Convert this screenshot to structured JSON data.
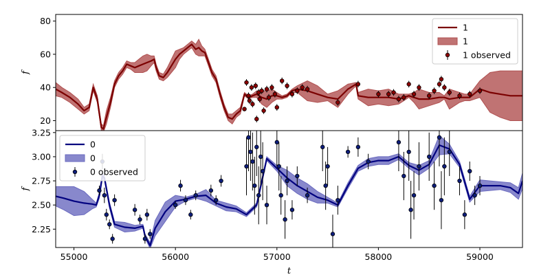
{
  "chart_data": [
    {
      "type": "line",
      "panel": "top",
      "xlabel": "",
      "ylabel": "f",
      "xlim": [
        54820,
        59420
      ],
      "ylim": [
        14,
        84
      ],
      "xticks": [],
      "yticks": [
        20,
        40,
        60,
        80
      ],
      "ytick_labels": [
        "20",
        "40",
        "60",
        "80"
      ],
      "colors": {
        "line": "#7b0000",
        "band": "#b05050",
        "point": "#8b0000"
      },
      "legend": {
        "position": "top-right",
        "entries": [
          "1",
          "1",
          "1 observed"
        ]
      },
      "series": [
        {
          "name": "1",
          "kind": "model",
          "x": [
            54820,
            54880,
            54960,
            55040,
            55100,
            55150,
            55190,
            55230,
            55270,
            55290,
            55320,
            55360,
            55400,
            55440,
            55480,
            55520,
            55560,
            55600,
            55640,
            55680,
            55720,
            55760,
            55790,
            55810,
            55840,
            55880,
            55920,
            55960,
            56000,
            56040,
            56080,
            56120,
            56160,
            56200,
            56230,
            56260,
            56290,
            56320,
            56360,
            56400,
            56440,
            56480,
            56520,
            56560,
            56600,
            56640,
            56680,
            56700,
            56720,
            56760,
            56800,
            56850,
            56900,
            56950,
            57000,
            57050,
            57100,
            57150,
            57200,
            57300,
            57400,
            57500,
            57600,
            57700,
            57780,
            57800,
            57900,
            58000,
            58100,
            58200,
            58300,
            58350,
            58400,
            58500,
            58600,
            58650,
            58700,
            58800,
            58850,
            58900,
            59000,
            59100,
            59200,
            59300,
            59420
          ],
          "y": [
            39,
            37,
            34,
            30,
            26,
            28,
            40,
            33,
            16,
            15,
            22,
            31,
            42,
            47,
            50,
            54,
            53,
            52,
            53,
            54,
            55,
            56,
            57,
            52,
            47,
            46,
            49,
            53,
            57,
            60,
            62,
            64,
            66,
            63,
            64,
            62,
            61,
            56,
            49,
            45,
            36,
            28,
            22,
            21,
            24,
            26,
            36,
            35,
            34,
            35,
            36,
            34,
            33,
            35,
            35,
            34,
            35,
            38,
            39,
            38,
            36,
            34,
            33,
            39,
            42,
            35,
            34,
            34,
            34,
            33,
            35,
            34,
            33,
            33,
            34,
            34,
            33,
            34,
            34,
            34,
            39,
            37,
            36,
            35,
            35
          ],
          "err": [
            4,
            3,
            3,
            3,
            2,
            2,
            2,
            2,
            2,
            2,
            4,
            3,
            2,
            2,
            2,
            2,
            2,
            3,
            4,
            5,
            5,
            3,
            2,
            2,
            2,
            2,
            3,
            4,
            5,
            3,
            2,
            2,
            2,
            3,
            5,
            3,
            2,
            2,
            2,
            2,
            2,
            2,
            2,
            3,
            2,
            2,
            1,
            1,
            1,
            1,
            2,
            4,
            5,
            4,
            2,
            1,
            1,
            1,
            2,
            6,
            5,
            2,
            5,
            3,
            1,
            2,
            5,
            4,
            5,
            3,
            1,
            3,
            6,
            4,
            3,
            1,
            6,
            3,
            2,
            2,
            5,
            12,
            14,
            15,
            15
          ]
        },
        {
          "name": "1 observed",
          "kind": "observed",
          "x": [
            56680,
            56700,
            56720,
            56730,
            56750,
            56760,
            56790,
            56800,
            56820,
            56830,
            56850,
            56870,
            56900,
            56920,
            56950,
            56980,
            57000,
            57050,
            57100,
            57150,
            57200,
            57250,
            57300,
            57600,
            57800,
            58000,
            58100,
            58150,
            58200,
            58250,
            58300,
            58350,
            58400,
            58500,
            58550,
            58600,
            58620,
            58650,
            58700,
            58800,
            58900,
            59000
          ],
          "y": [
            27,
            43,
            35,
            32,
            40,
            30,
            41,
            21,
            37,
            33,
            38,
            26,
            39,
            34,
            40,
            36,
            28,
            44,
            41,
            36,
            38,
            40,
            39,
            31,
            42,
            36,
            36,
            37,
            33,
            34,
            42,
            36,
            40,
            35,
            38,
            42,
            45,
            40,
            37,
            35,
            36,
            38
          ],
          "err": [
            1,
            2,
            2,
            2,
            2,
            2,
            2,
            2,
            2,
            2,
            2,
            2,
            2,
            2,
            2,
            2,
            2,
            2,
            2,
            2,
            2,
            2,
            2,
            2,
            2,
            2,
            2,
            2,
            2,
            2,
            2,
            2,
            2,
            2,
            2,
            2,
            2,
            2,
            2,
            2,
            2,
            2
          ]
        }
      ]
    },
    {
      "type": "line",
      "panel": "bottom",
      "xlabel": "t",
      "ylabel": "f",
      "xlim": [
        54820,
        59420
      ],
      "ylim": [
        2.06,
        3.27
      ],
      "xticks": [
        55000,
        56000,
        57000,
        58000,
        59000
      ],
      "xtick_labels": [
        "55000",
        "56000",
        "57000",
        "58000",
        "59000"
      ],
      "yticks": [
        2.25,
        2.5,
        2.75,
        3.0,
        3.25
      ],
      "ytick_labels": [
        "2.25",
        "2.50",
        "2.75",
        "3.00",
        "3.25"
      ],
      "colors": {
        "line": "#00007f",
        "band": "#6a6abf",
        "point": "#0d1d7a"
      },
      "legend": {
        "position": "top-left",
        "entries": [
          "0",
          "0",
          "0 observed"
        ]
      },
      "series": [
        {
          "name": "0",
          "kind": "model",
          "x": [
            54820,
            54900,
            55000,
            55100,
            55180,
            55220,
            55250,
            55280,
            55300,
            55350,
            55400,
            55500,
            55600,
            55680,
            55700,
            55750,
            55800,
            55900,
            56000,
            56100,
            56200,
            56300,
            56400,
            56500,
            56600,
            56700,
            56800,
            56900,
            57000,
            57100,
            57200,
            57300,
            57400,
            57500,
            57600,
            57700,
            57800,
            57900,
            58000,
            58100,
            58200,
            58300,
            58400,
            58500,
            58600,
            58700,
            58800,
            58900,
            59000,
            59100,
            59200,
            59300,
            59380,
            59420
          ],
          "y": [
            2.59,
            2.57,
            2.54,
            2.52,
            2.51,
            2.5,
            2.6,
            2.8,
            2.78,
            2.5,
            2.3,
            2.27,
            2.26,
            2.28,
            2.18,
            2.08,
            2.26,
            2.43,
            2.54,
            2.56,
            2.59,
            2.6,
            2.52,
            2.48,
            2.46,
            2.4,
            2.5,
            2.98,
            2.88,
            2.78,
            2.7,
            2.64,
            2.58,
            2.55,
            2.5,
            2.7,
            2.88,
            2.94,
            2.96,
            2.96,
            3.0,
            2.91,
            2.86,
            2.92,
            3.12,
            3.08,
            2.92,
            2.56,
            2.7,
            2.7,
            2.7,
            2.68,
            2.62,
            2.75
          ],
          "err": [
            0.1,
            0.12,
            0.15,
            0.12,
            0.05,
            0.02,
            0.03,
            0.03,
            0.02,
            0.03,
            0.03,
            0.05,
            0.03,
            0.02,
            0.02,
            0.03,
            0.08,
            0.1,
            0.06,
            0.02,
            0.02,
            0.06,
            0.03,
            0.04,
            0.03,
            0.02,
            0.02,
            0.02,
            0.03,
            0.08,
            0.08,
            0.08,
            0.06,
            0.03,
            0.02,
            0.03,
            0.03,
            0.04,
            0.04,
            0.04,
            0.03,
            0.03,
            0.05,
            0.04,
            0.1,
            0.05,
            0.03,
            0.03,
            0.06,
            0.05,
            0.04,
            0.05,
            0.06,
            0.08
          ]
        },
        {
          "name": "0 observed",
          "kind": "observed",
          "x": [
            55250,
            55280,
            55300,
            55320,
            55350,
            55380,
            55400,
            55600,
            55650,
            55700,
            55720,
            55750,
            56000,
            56050,
            56100,
            56150,
            56200,
            56350,
            56400,
            56450,
            56700,
            56720,
            56740,
            56760,
            56780,
            56800,
            56820,
            56840,
            56860,
            56900,
            57000,
            57020,
            57040,
            57080,
            57100,
            57150,
            57200,
            57300,
            57450,
            57480,
            57500,
            57550,
            57600,
            57700,
            57800,
            57900,
            58200,
            58250,
            58300,
            58320,
            58350,
            58400,
            58500,
            58550,
            58600,
            58620,
            58650,
            58700,
            58800,
            58850,
            58900,
            58950,
            59000
          ],
          "y": [
            2.65,
            2.95,
            2.6,
            2.4,
            2.3,
            2.15,
            2.55,
            2.45,
            2.35,
            2.15,
            2.4,
            2.2,
            2.5,
            2.7,
            2.55,
            2.4,
            2.6,
            2.65,
            2.55,
            2.75,
            2.9,
            3.2,
            3.05,
            2.95,
            2.7,
            3.1,
            2.6,
            3.0,
            2.85,
            2.5,
            3.15,
            2.9,
            2.6,
            2.35,
            2.75,
            2.45,
            2.8,
            2.6,
            3.1,
            2.7,
            2.9,
            2.2,
            2.55,
            3.05,
            3.1,
            2.95,
            3.15,
            2.8,
            3.05,
            2.45,
            2.6,
            2.9,
            3.0,
            2.7,
            3.2,
            2.55,
            2.9,
            3.05,
            2.75,
            2.4,
            2.85,
            2.6,
            2.7
          ],
          "err": [
            0.05,
            0.08,
            0.08,
            0.06,
            0.05,
            0.05,
            0.06,
            0.06,
            0.05,
            0.05,
            0.06,
            0.05,
            0.04,
            0.06,
            0.05,
            0.05,
            0.05,
            0.06,
            0.05,
            0.06,
            0.3,
            0.35,
            0.3,
            0.3,
            0.3,
            0.3,
            0.3,
            0.3,
            0.3,
            0.2,
            0.25,
            0.25,
            0.2,
            0.2,
            0.15,
            0.1,
            0.1,
            0.08,
            0.25,
            0.25,
            0.2,
            0.2,
            0.15,
            0.06,
            0.1,
            0.08,
            0.3,
            0.25,
            0.3,
            0.3,
            0.25,
            0.25,
            0.25,
            0.25,
            0.3,
            0.3,
            0.3,
            0.25,
            0.15,
            0.15,
            0.1,
            0.1,
            0.1
          ]
        }
      ]
    }
  ]
}
